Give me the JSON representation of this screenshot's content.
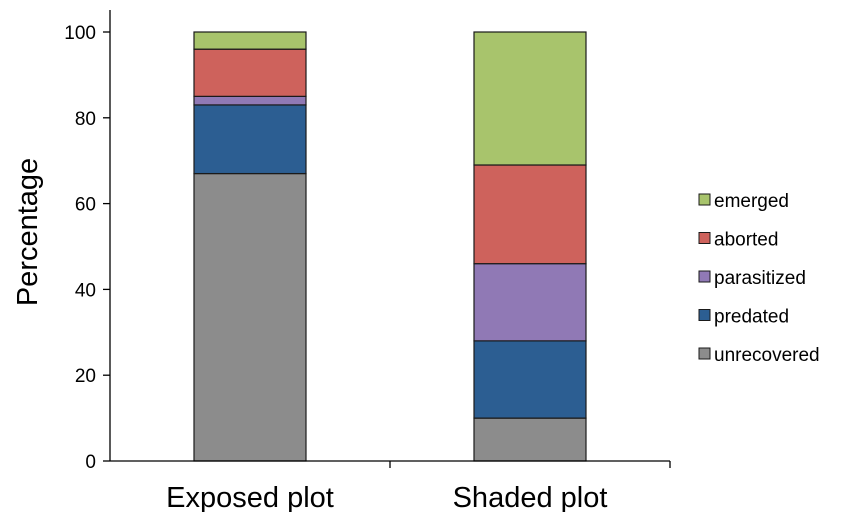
{
  "chart_data": {
    "type": "bar",
    "stacked": true,
    "categories": [
      "Exposed plot",
      "Shaded plot"
    ],
    "series": [
      {
        "name": "unrecovered",
        "values": [
          67,
          10
        ],
        "color": "#8c8c8c"
      },
      {
        "name": "predated",
        "values": [
          16,
          18
        ],
        "color": "#2c5e92"
      },
      {
        "name": "parasitized",
        "values": [
          2,
          18
        ],
        "color": "#9079b5"
      },
      {
        "name": "aborted",
        "values": [
          11,
          23
        ],
        "color": "#ce625c"
      },
      {
        "name": "emerged",
        "values": [
          4,
          31
        ],
        "color": "#a8c46c"
      }
    ],
    "title": "",
    "xlabel": "",
    "ylabel": "Percentage",
    "ylim": [
      0,
      100
    ],
    "yticks": [
      0,
      20,
      40,
      60,
      80,
      100
    ],
    "legend_position": "right",
    "grid": false
  }
}
